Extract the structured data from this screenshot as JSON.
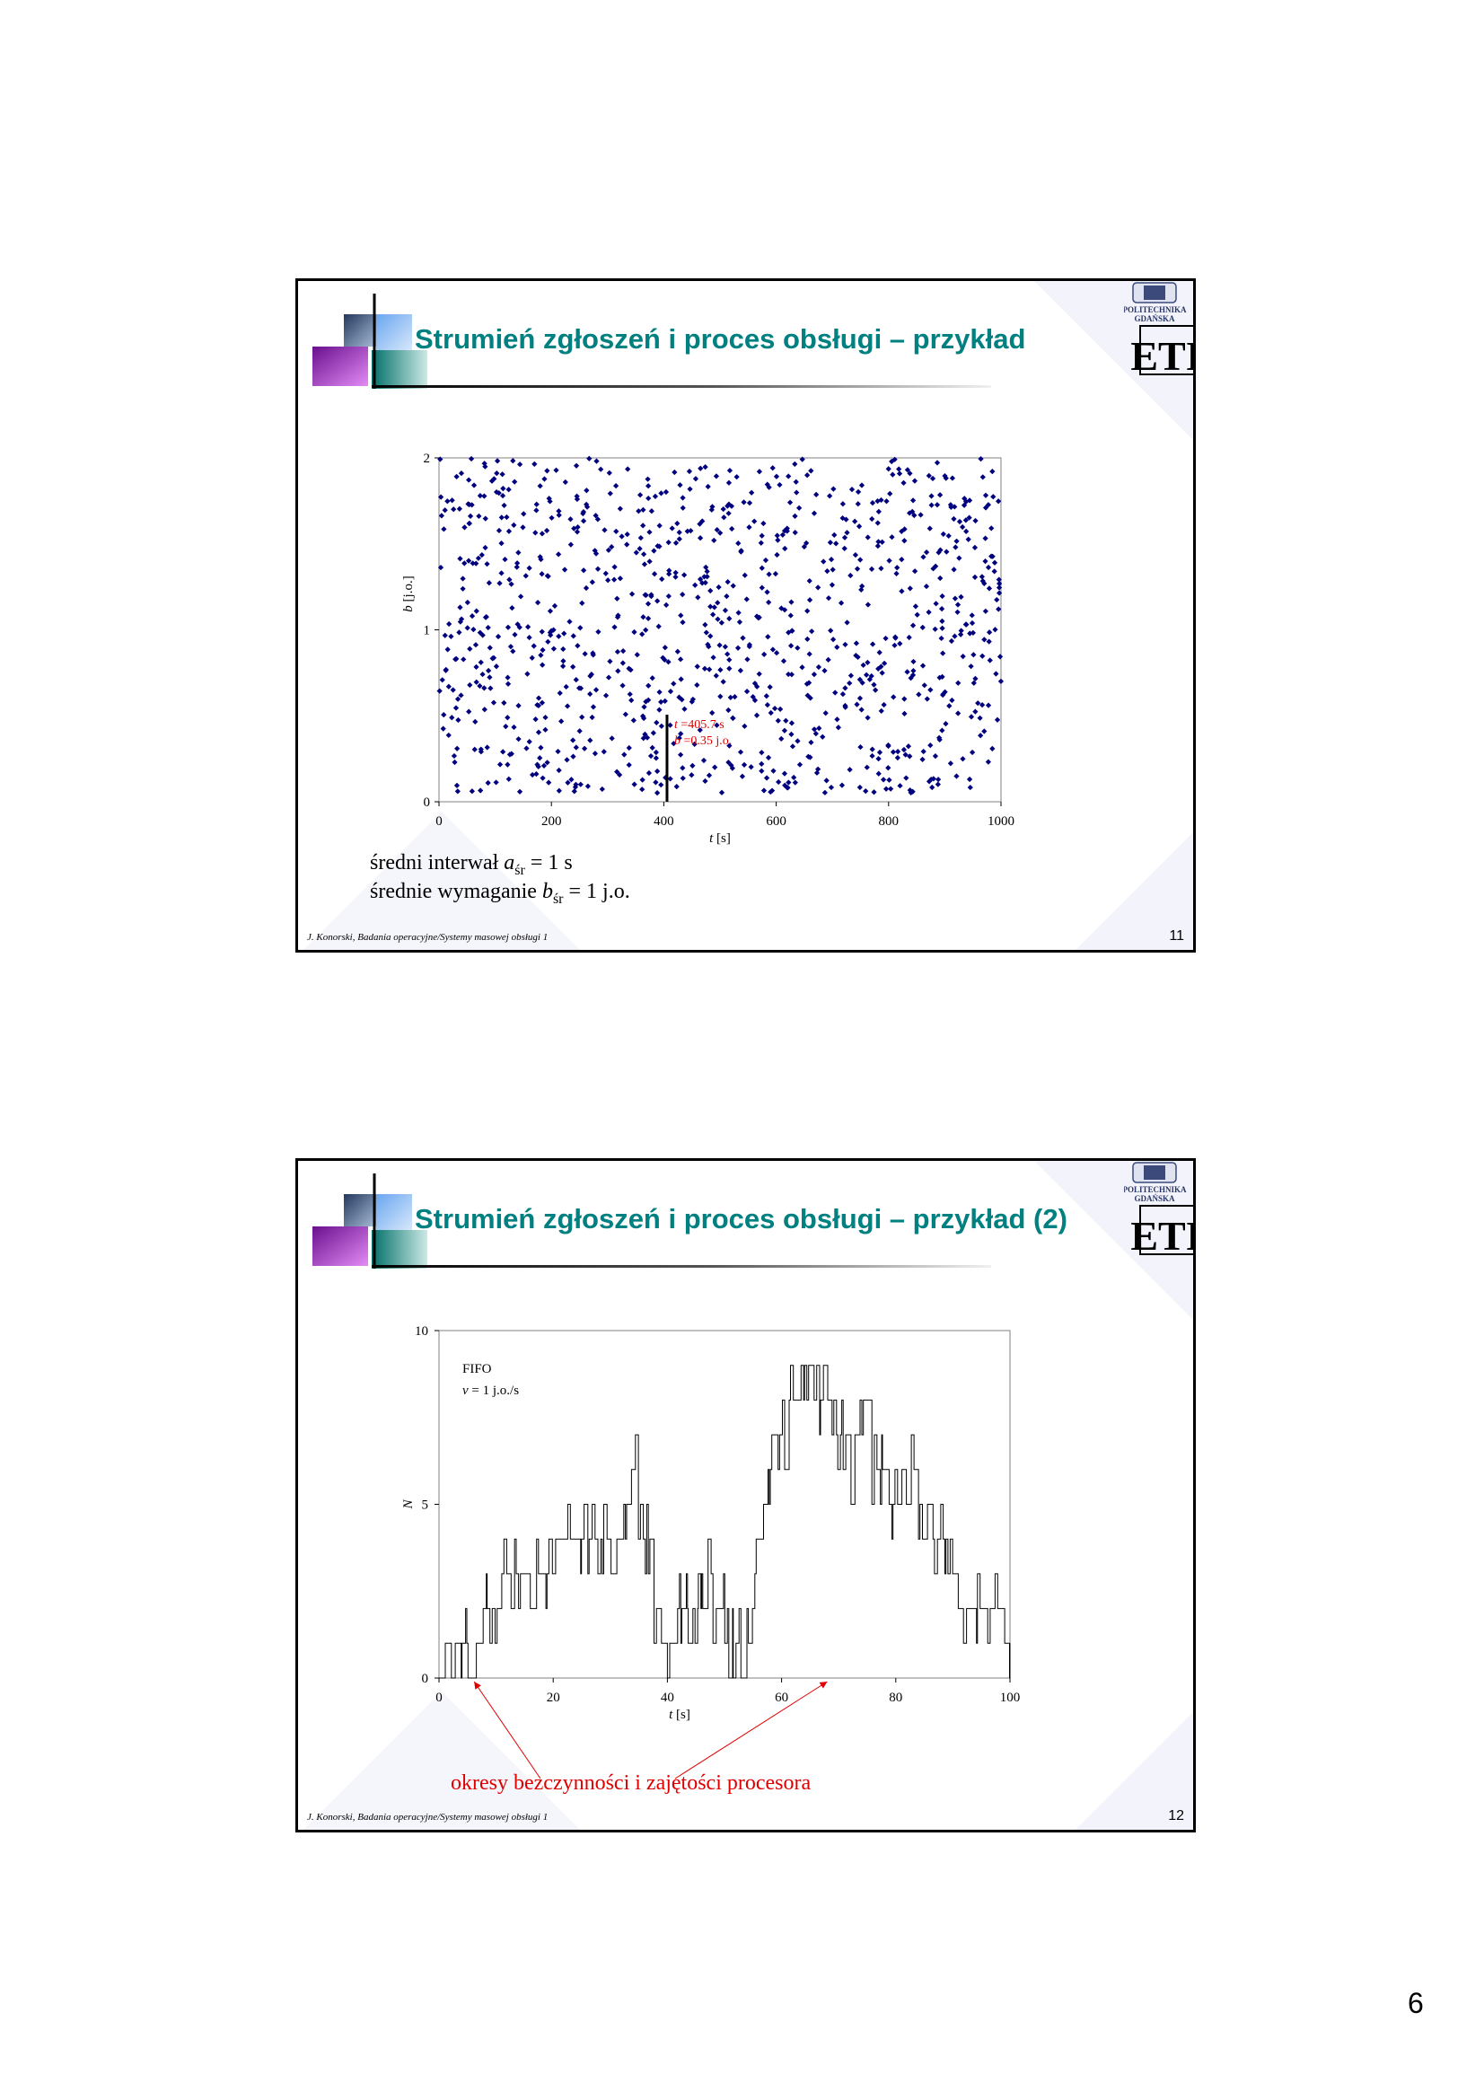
{
  "page_number": "6",
  "footer_text": "J. Konorski, Badania operacyjne/Systemy masowej obsługi 1",
  "logo": {
    "line1": "POLITECHNIKA",
    "line2": "GDAŃSKA",
    "mark": "ETI"
  },
  "slides": [
    {
      "title": "Strumień zgłoszeń i proces obsługi – przykład",
      "slide_number": "11",
      "notes": {
        "line1_pre": "średni interwał ",
        "line1_var": "a",
        "line1_sub": "śr",
        "line1_post": " = 1 s",
        "line2_pre": "średnie wymaganie ",
        "line2_var": "b",
        "line2_sub": "śr",
        "line2_post": " = 1 j.o."
      }
    },
    {
      "title": "Strumień zgłoszeń i proces obsługi – przykład (2)",
      "slide_number": "12",
      "note": "okresy bezczynności i zajętości procesora"
    }
  ],
  "chart_data": [
    {
      "type": "scatter",
      "title": "",
      "xlabel_var": "t",
      "xlabel_unit": "[s]",
      "ylabel_var": "b",
      "ylabel_unit": "[j.o.]",
      "xlim": [
        0,
        1000
      ],
      "ylim": [
        0,
        2
      ],
      "xticks": [
        0,
        200,
        400,
        600,
        800,
        1000
      ],
      "yticks": [
        0,
        1,
        2
      ],
      "color": "#00007f",
      "n_points": 1000,
      "distribution": "exponential inter-arrival times (mean 1 s) and uniform service requirement on [0, 2] j.o.",
      "annotation": {
        "t": 405.7,
        "b": 0.35,
        "line1_var": "t",
        "line1_text": " =405.7 s",
        "line2_var": "b",
        "line2_text": " =0.35 j.o.",
        "color": "#e00000"
      }
    },
    {
      "type": "line",
      "step": true,
      "title": "",
      "xlabel_var": "t",
      "xlabel_unit": "[s]",
      "ylabel": "N",
      "xlim": [
        0,
        100
      ],
      "ylim": [
        0,
        10
      ],
      "xticks": [
        0,
        20,
        40,
        60,
        80,
        100
      ],
      "yticks": [
        0,
        5,
        10
      ],
      "legend_line1": "FIFO",
      "legend_line2_var": "v",
      "legend_line2_text": " = 1 j.o./s",
      "color": "#000000",
      "envelope": {
        "t": [
          0,
          1,
          2,
          4,
          6,
          7,
          8,
          9,
          10,
          12,
          15,
          18,
          20,
          24,
          28,
          30,
          33,
          34,
          35,
          36,
          37,
          38,
          39,
          40,
          41,
          42,
          43,
          45,
          47,
          48,
          50,
          52,
          53,
          54,
          55,
          56,
          57,
          58,
          59,
          60,
          61,
          62,
          63,
          64,
          65,
          66,
          67,
          68,
          69,
          70,
          71,
          72,
          73,
          74,
          75,
          76,
          77,
          78,
          79,
          80,
          81,
          82,
          83,
          84,
          85,
          86,
          87,
          88,
          89,
          90,
          92,
          94,
          96,
          98,
          100
        ],
        "N": [
          0,
          0,
          1,
          1,
          0,
          1,
          2,
          2,
          2,
          3,
          3,
          3,
          4,
          4,
          4,
          4,
          5,
          6,
          5,
          4,
          3,
          2,
          1,
          0,
          1,
          2,
          2,
          2,
          3,
          2,
          2,
          0,
          1,
          2,
          3,
          4,
          5,
          6,
          7,
          7,
          7,
          8,
          8,
          9,
          9,
          9,
          8,
          8,
          8,
          7,
          7,
          6,
          6,
          7,
          7,
          6,
          6,
          6,
          5,
          5,
          5,
          6,
          6,
          5,
          5,
          4,
          4,
          4,
          3,
          3,
          2,
          2,
          2,
          2,
          1
        ]
      },
      "annotation_arrows_to_t": [
        6,
        68
      ]
    }
  ]
}
